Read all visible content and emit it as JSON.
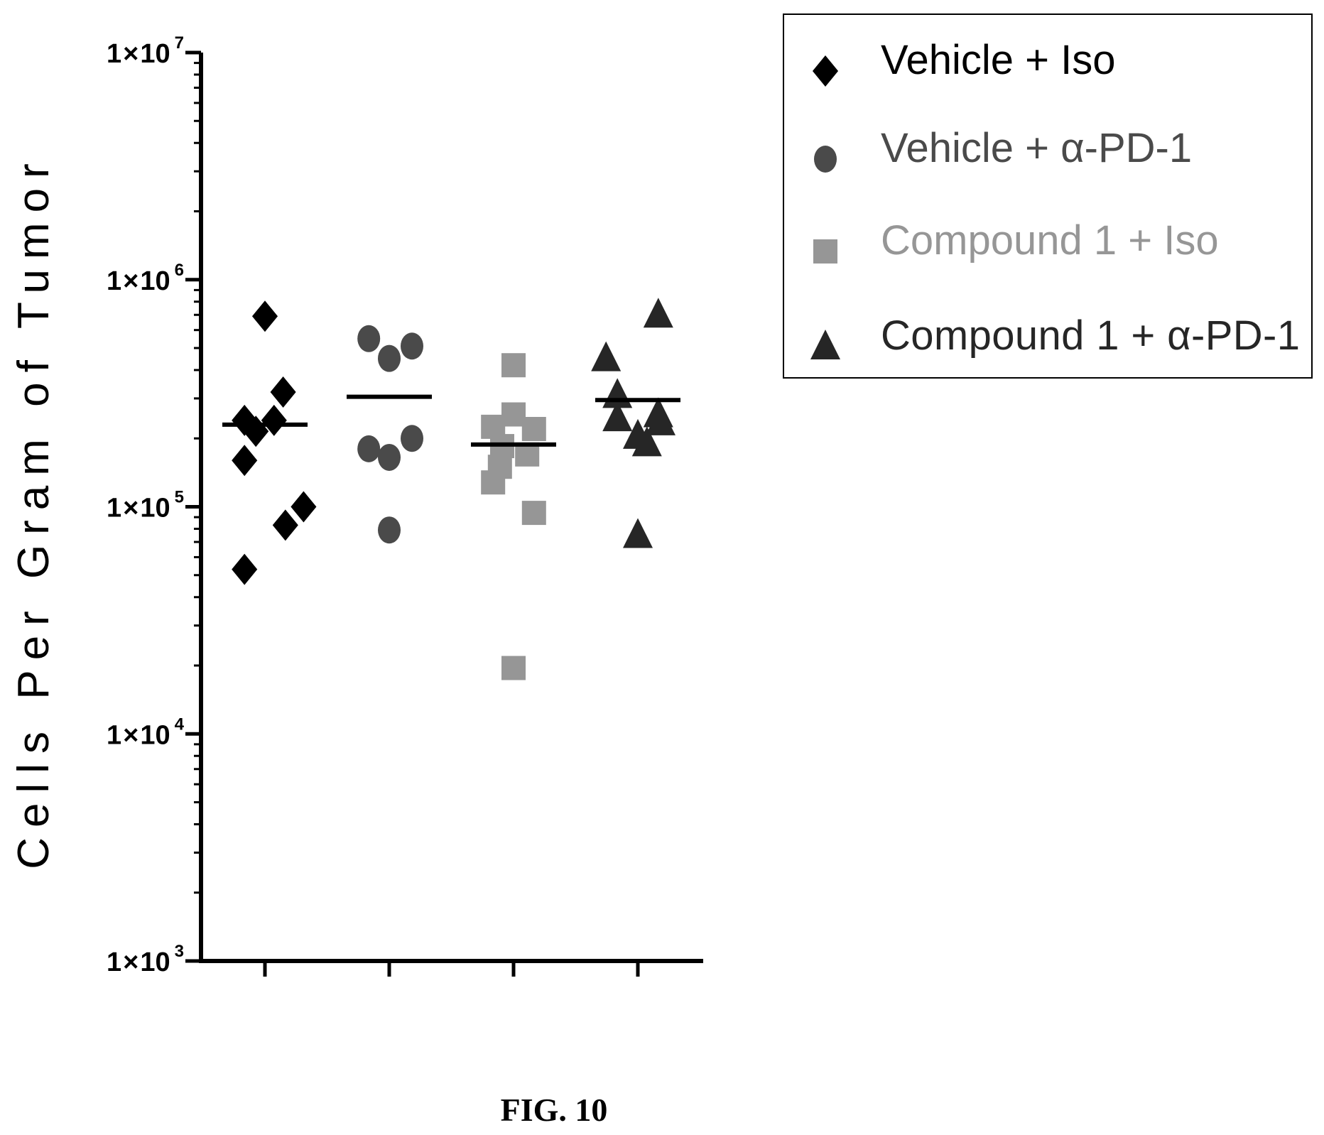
{
  "chart_data": {
    "type": "scatter",
    "title": "",
    "caption": "FIG. 10",
    "ylabel": "Cells Per Gram of Tumor",
    "xlabel": "",
    "yscale": "log",
    "ylim": [
      1000,
      10000000
    ],
    "yticks": [
      {
        "value": 1000,
        "mantissa": "1",
        "times": "×",
        "base": "10",
        "exp": "3"
      },
      {
        "value": 10000,
        "mantissa": "1",
        "times": "×",
        "base": "10",
        "exp": "4"
      },
      {
        "value": 100000,
        "mantissa": "1",
        "times": "×",
        "base": "10",
        "exp": "5"
      },
      {
        "value": 1000000,
        "mantissa": "1",
        "times": "×",
        "base": "10",
        "exp": "6"
      },
      {
        "value": 10000000,
        "mantissa": "1",
        "times": "×",
        "base": "10",
        "exp": "7"
      }
    ],
    "grid": false,
    "legend_position": "top-right",
    "series": [
      {
        "name": "Vehicle + Iso",
        "marker": "diamond",
        "color": "#000000",
        "mean": 230000,
        "points": [
          {
            "value": 690000,
            "jitter": 0.0
          },
          {
            "value": 320000,
            "jitter": 0.8
          },
          {
            "value": 240000,
            "jitter": -0.9
          },
          {
            "value": 215000,
            "jitter": -0.4
          },
          {
            "value": 240000,
            "jitter": 0.4
          },
          {
            "value": 160000,
            "jitter": -0.9
          },
          {
            "value": 100000,
            "jitter": 1.7
          },
          {
            "value": 83000,
            "jitter": 0.9
          },
          {
            "value": 53000,
            "jitter": -0.9
          }
        ]
      },
      {
        "name": "Vehicle + α-PD-1",
        "marker": "circle",
        "color": "#4a4a4a",
        "mean": 305000,
        "points": [
          {
            "value": 550000,
            "jitter": -0.9
          },
          {
            "value": 510000,
            "jitter": 1.0
          },
          {
            "value": 450000,
            "jitter": 0.0
          },
          {
            "value": 200000,
            "jitter": 1.0
          },
          {
            "value": 180000,
            "jitter": -0.9
          },
          {
            "value": 165000,
            "jitter": 0.0
          },
          {
            "value": 79000,
            "jitter": 0.0
          }
        ]
      },
      {
        "name": "Compound 1 + Iso",
        "marker": "square",
        "color": "#969696",
        "mean": 188000,
        "points": [
          {
            "value": 420000,
            "jitter": 0.0
          },
          {
            "value": 255000,
            "jitter": 0.0
          },
          {
            "value": 225000,
            "jitter": -0.9
          },
          {
            "value": 220000,
            "jitter": 0.9
          },
          {
            "value": 185000,
            "jitter": -0.5
          },
          {
            "value": 170000,
            "jitter": 0.6
          },
          {
            "value": 150000,
            "jitter": -0.6
          },
          {
            "value": 128000,
            "jitter": -0.9
          },
          {
            "value": 94000,
            "jitter": 0.9
          },
          {
            "value": 19500,
            "jitter": 0.0
          }
        ]
      },
      {
        "name": "Compound 1 + α-PD-1",
        "marker": "triangle",
        "color": "#262626",
        "mean": 295000,
        "points": [
          {
            "value": 700000,
            "jitter": 0.9
          },
          {
            "value": 450000,
            "jitter": -1.4
          },
          {
            "value": 310000,
            "jitter": -0.9
          },
          {
            "value": 255000,
            "jitter": 0.9
          },
          {
            "value": 245000,
            "jitter": -0.9
          },
          {
            "value": 235000,
            "jitter": 1.0
          },
          {
            "value": 205000,
            "jitter": 0.0
          },
          {
            "value": 190000,
            "jitter": 0.4
          },
          {
            "value": 75000,
            "jitter": 0.0
          }
        ]
      }
    ]
  }
}
